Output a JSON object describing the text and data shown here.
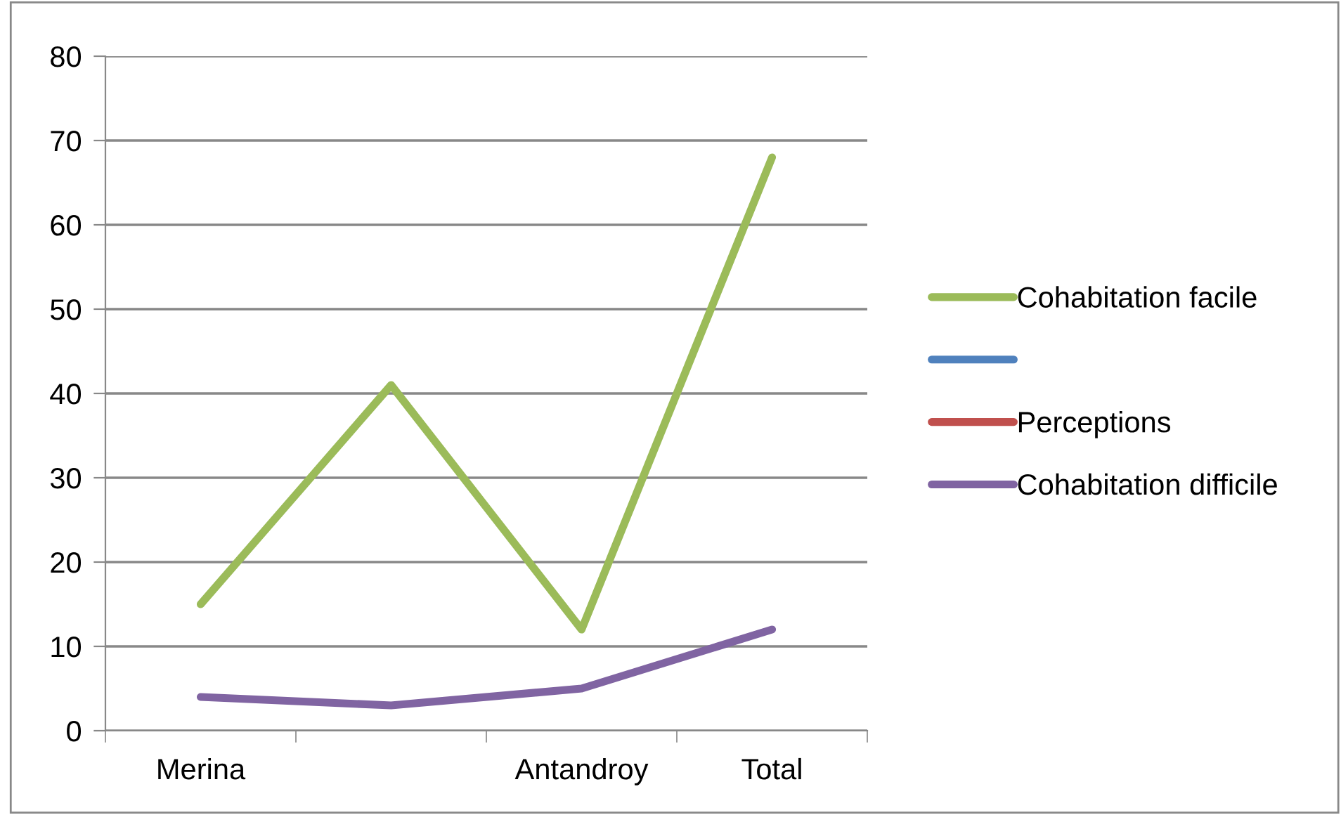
{
  "chart_data": {
    "type": "line",
    "categories": [
      "Merina",
      null,
      "Antandroy",
      "Total"
    ],
    "series": [
      {
        "name": "Cohabitation facile",
        "color": "#9bbb59",
        "values": [
          15,
          41,
          12,
          68
        ]
      },
      {
        "color": "#4f81bd",
        "values": [
          null,
          null,
          null,
          null
        ]
      },
      {
        "name": "Perceptions",
        "color": "#c0504d",
        "values": [
          null,
          null,
          null,
          null
        ]
      },
      {
        "name": "Cohabitation difficile",
        "color": "#8064a2",
        "values": [
          4,
          3,
          5,
          12
        ]
      }
    ],
    "ylim": [
      0,
      80
    ],
    "yticks": [
      0,
      10,
      20,
      30,
      40,
      50,
      60,
      70,
      80
    ],
    "grid": "y",
    "legend": "right",
    "marker": "none",
    "line_style": "solid"
  }
}
